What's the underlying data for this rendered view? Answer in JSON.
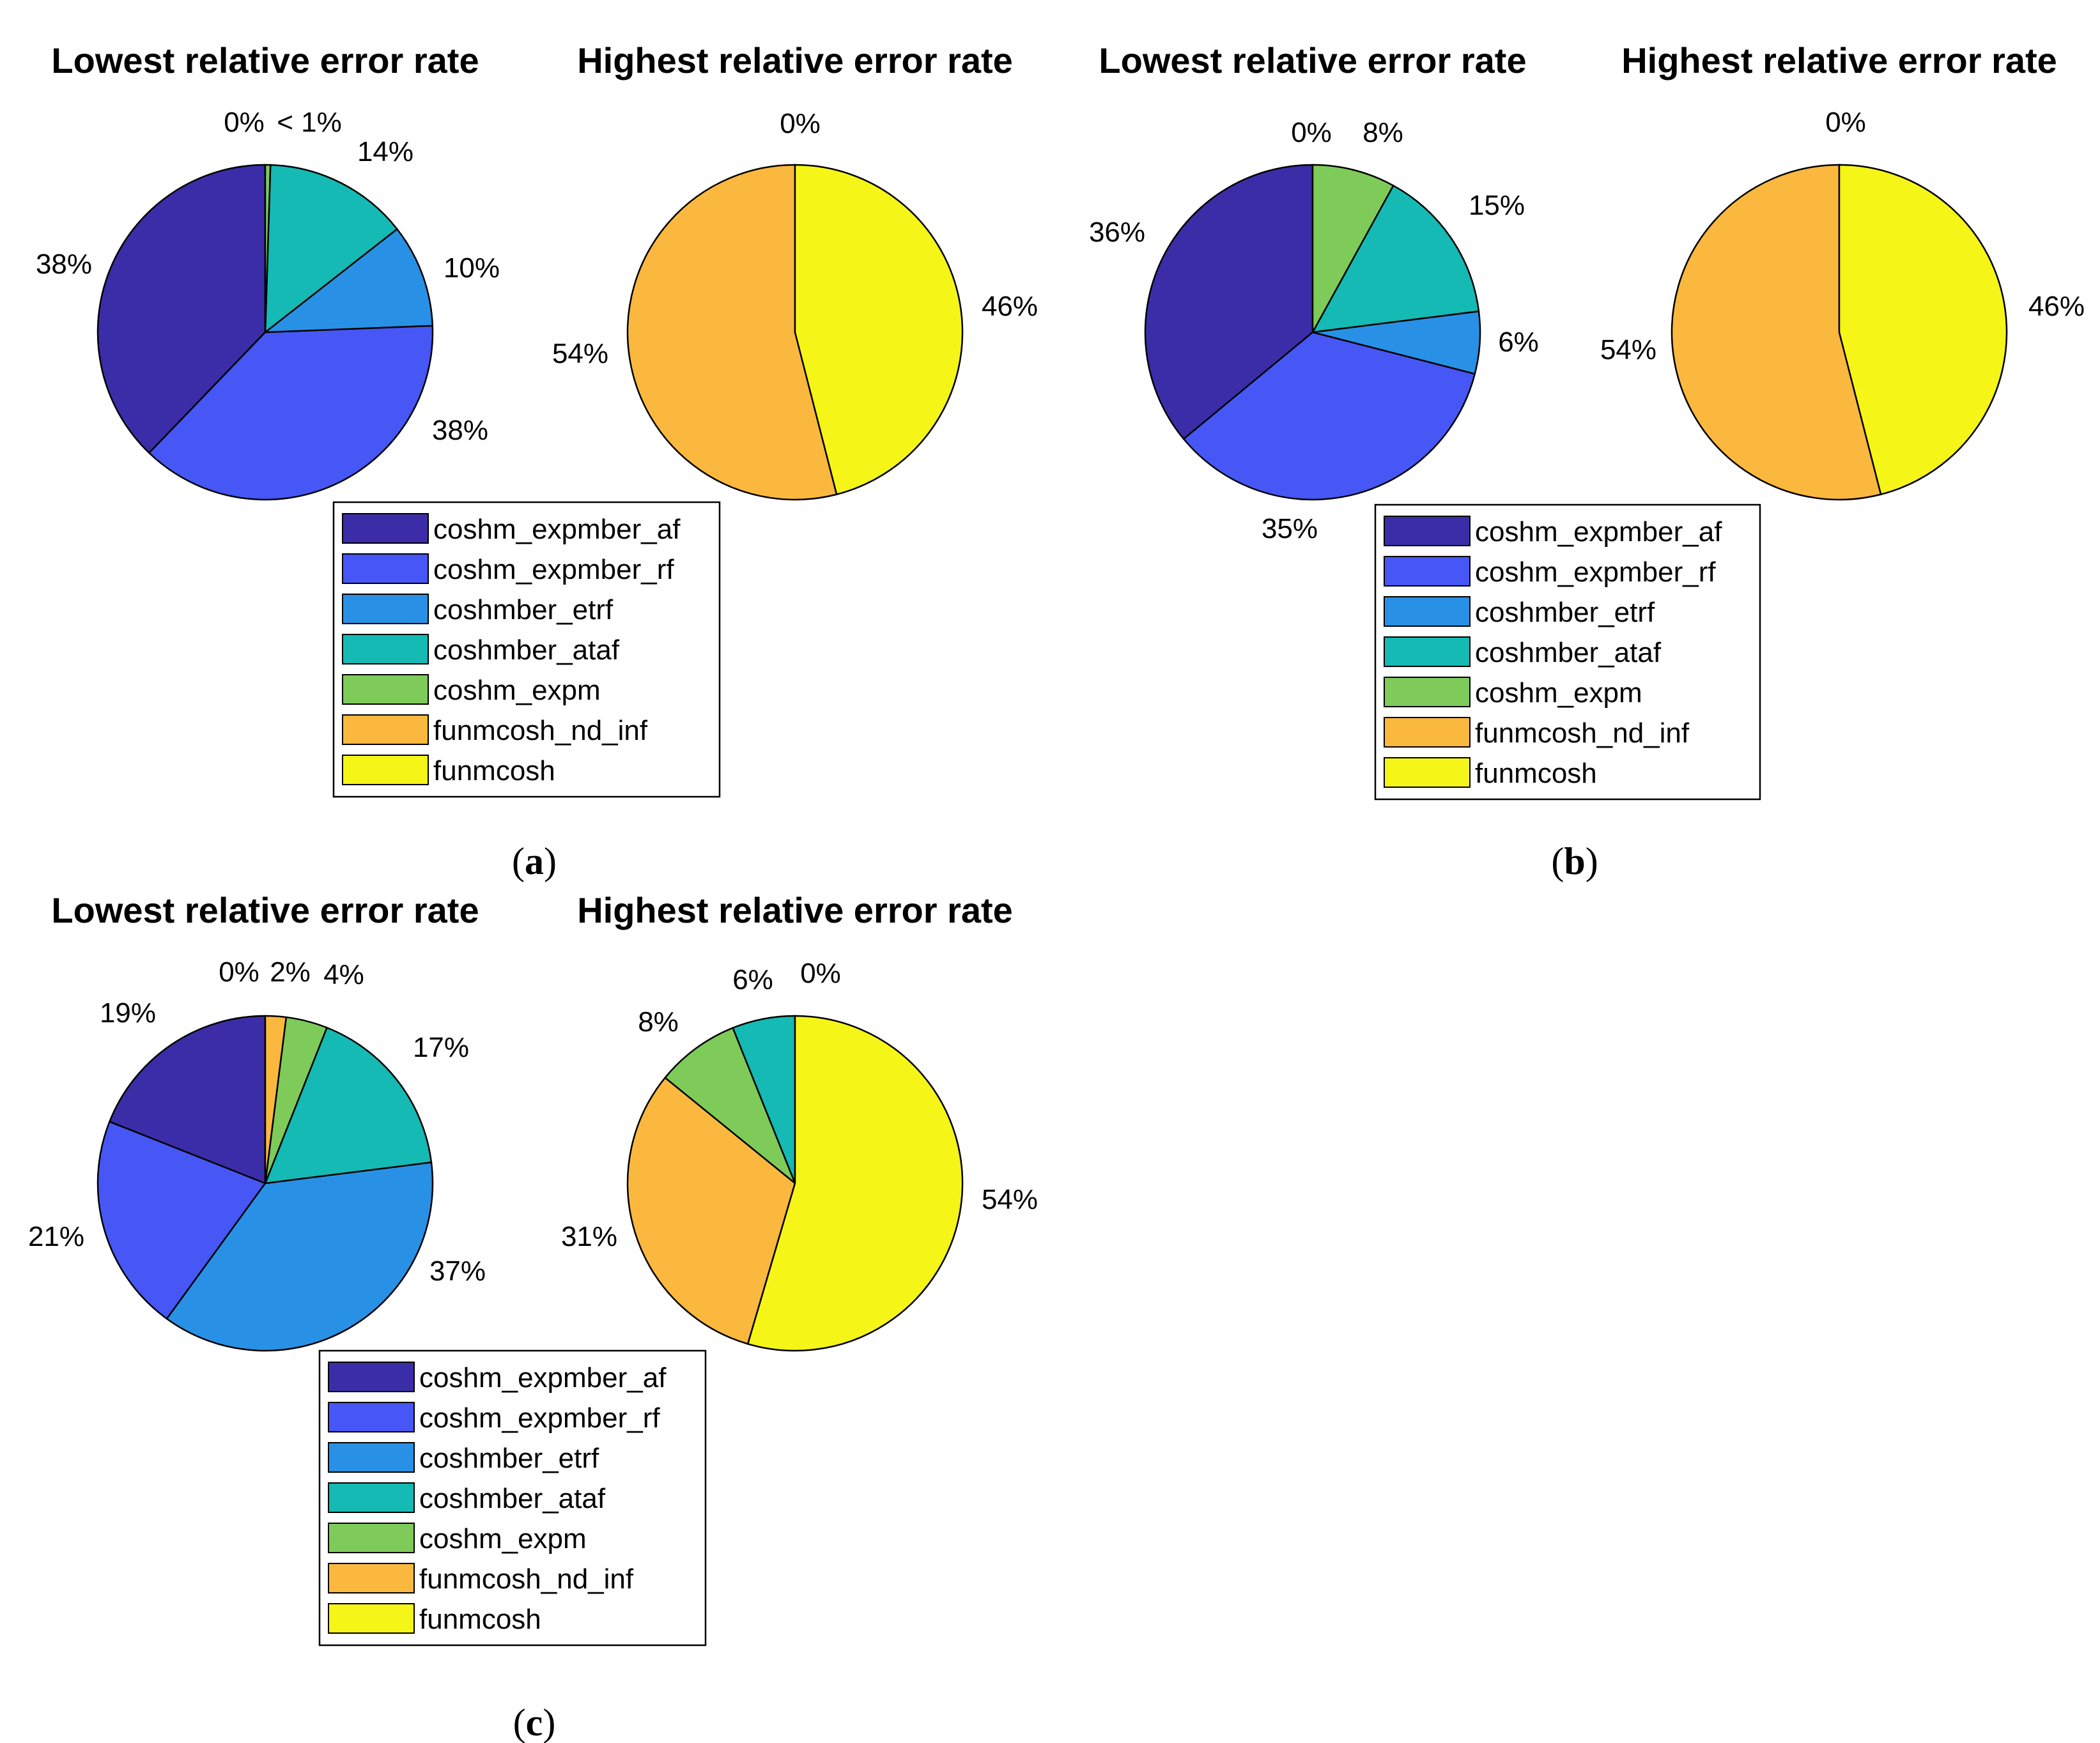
{
  "methods": [
    "coshm_expmber_af",
    "coshm_expmber_rf",
    "coshmber_etrf",
    "coshmber_ataf",
    "coshm_expm",
    "funmcosh_nd_inf",
    "funmcosh"
  ],
  "colors": [
    "#3B2DA8",
    "#4657F6",
    "#2891E6",
    "#14BAB3",
    "#7ECB59",
    "#FBB83E",
    "#F5F518"
  ],
  "chart_data": [
    {
      "panel": "a",
      "type": "pie",
      "title": "Lowest relative error rate",
      "values": [
        38,
        38,
        10,
        14,
        0.5,
        0,
        0
      ],
      "labels": [
        "38%",
        "38%",
        "10%",
        "14%",
        "< 1%",
        "0%",
        ""
      ]
    },
    {
      "panel": "a",
      "type": "pie",
      "title": "Highest relative error rate",
      "values": [
        0,
        0,
        0,
        0,
        0,
        54,
        46
      ],
      "labels": [
        "",
        "",
        "",
        "",
        "",
        "54%",
        "46%"
      ],
      "extra_labels": [
        "0%"
      ]
    },
    {
      "panel": "b",
      "type": "pie",
      "title": "Lowest relative error rate",
      "values": [
        36,
        35,
        6,
        15,
        8,
        0,
        0
      ],
      "labels": [
        "36%",
        "35%",
        "6%",
        "15%",
        "8%",
        "0%",
        ""
      ]
    },
    {
      "panel": "b",
      "type": "pie",
      "title": "Highest relative error rate",
      "values": [
        0,
        0,
        0,
        0,
        0,
        54,
        46
      ],
      "labels": [
        "",
        "",
        "",
        "",
        "",
        "54%",
        "46%"
      ],
      "extra_labels": [
        "0%"
      ]
    },
    {
      "panel": "c",
      "type": "pie",
      "title": "Lowest relative error rate",
      "values": [
        19,
        21,
        37,
        17,
        4,
        2,
        0
      ],
      "labels": [
        "19%",
        "21%",
        "37%",
        "17%",
        "4%",
        "2%",
        "0%"
      ]
    },
    {
      "panel": "c",
      "type": "pie",
      "title": "Highest relative error rate",
      "values": [
        0,
        0,
        0,
        6,
        8,
        31,
        54
      ],
      "labels": [
        "",
        "",
        "",
        "6%",
        "8%",
        "31%",
        "54%"
      ],
      "extra_labels": [
        "0%"
      ]
    }
  ],
  "panel_labels": [
    {
      "open": "(",
      "letter": "a",
      "close": ")"
    },
    {
      "open": "(",
      "letter": "b",
      "close": ")"
    },
    {
      "open": "(",
      "letter": "c",
      "close": ")"
    }
  ]
}
